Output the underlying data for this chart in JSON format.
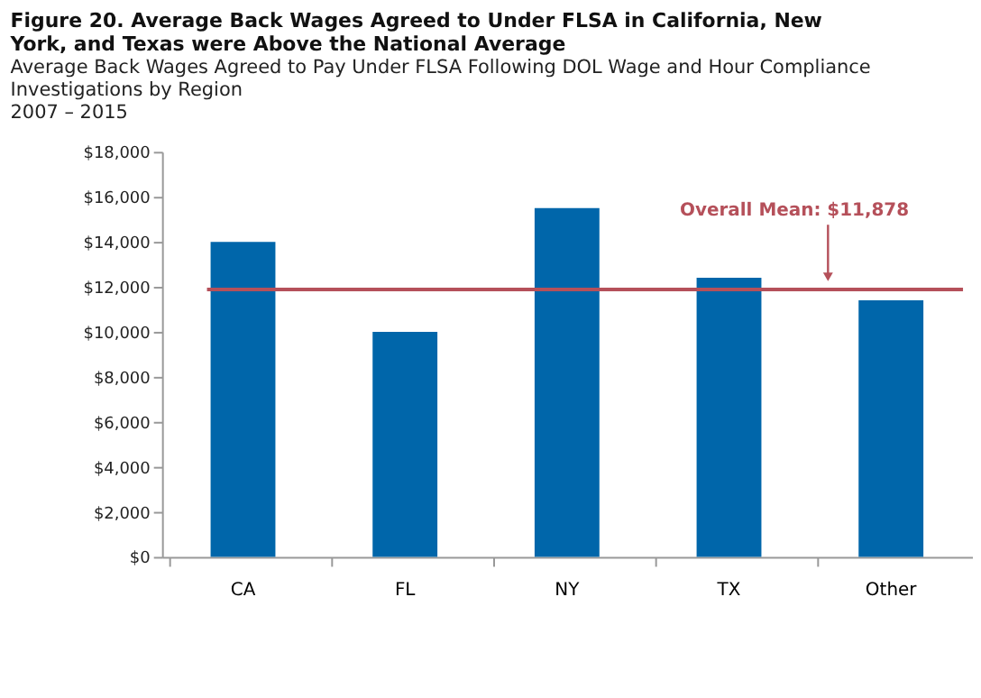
{
  "chart_data": {
    "type": "bar",
    "title": "Figure 20.  Average Back Wages Agreed to Under FLSA in California, New York, and Texas were Above the National Average",
    "subtitle": "Average Back Wages Agreed to Pay Under FLSA Following DOL Wage and Hour Compliance Investigations by Region\n2007 – 2015",
    "categories": [
      "CA",
      "FL",
      "NY",
      "TX",
      "Other"
    ],
    "values": [
      14000,
      10000,
      15500,
      12400,
      11400
    ],
    "color": "#0066aa",
    "ylim": [
      0,
      18000
    ],
    "yticks": [
      {
        "value": 0,
        "label": "$0"
      },
      {
        "value": 2000,
        "label": "$2,000"
      },
      {
        "value": 4000,
        "label": "$4,000"
      },
      {
        "value": 6000,
        "label": "$6,000"
      },
      {
        "value": 8000,
        "label": "$8,000"
      },
      {
        "value": 10000,
        "label": "$10,000"
      },
      {
        "value": 12000,
        "label": "$12,000"
      },
      {
        "value": 14000,
        "label": "$14,000"
      },
      {
        "value": 16000,
        "label": "$16,000"
      },
      {
        "value": 18000,
        "label": "$18,000"
      }
    ],
    "grid": false,
    "ref_lines": [
      {
        "axis": "y",
        "value": 11878,
        "label": "Overall Mean: $11,878",
        "color": "#b5505a"
      }
    ]
  }
}
